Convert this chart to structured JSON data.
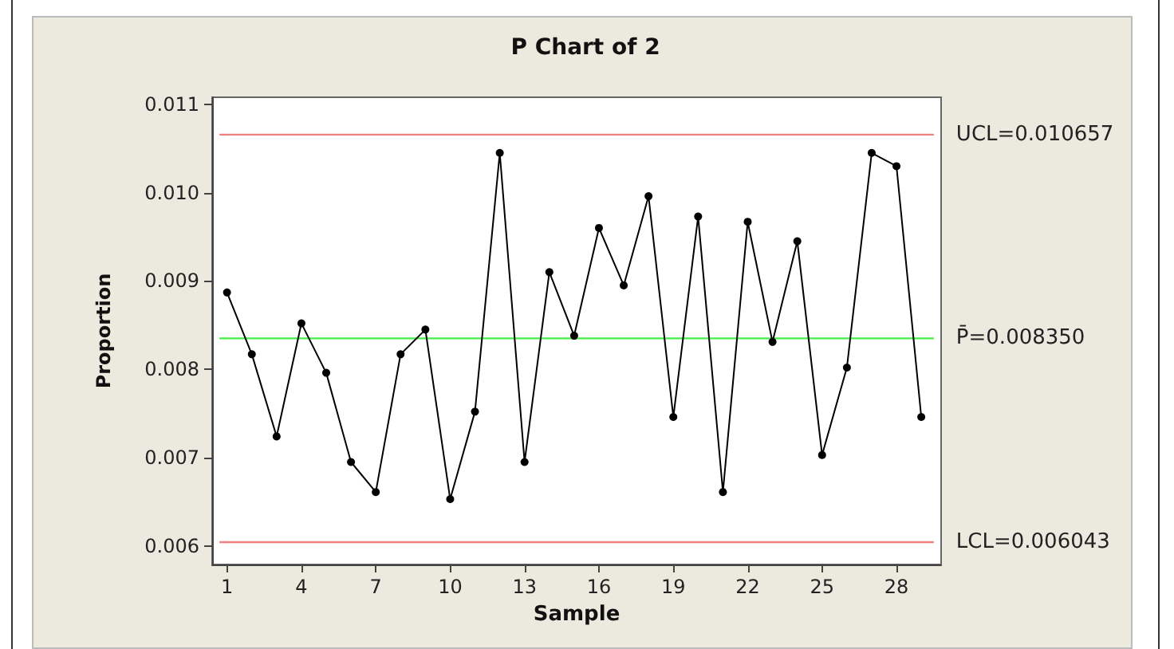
{
  "chart_data": {
    "type": "line",
    "title": "P Chart of 2",
    "xlabel": "Sample",
    "ylabel": "Proportion",
    "x": [
      1,
      2,
      3,
      4,
      5,
      6,
      7,
      8,
      9,
      10,
      11,
      12,
      13,
      14,
      15,
      16,
      17,
      18,
      19,
      20,
      21,
      22,
      23,
      24,
      25,
      26,
      27,
      28,
      29
    ],
    "series": [
      {
        "color": "#000000",
        "values": [
          0.00887,
          0.00817,
          0.00724,
          0.00852,
          0.00796,
          0.00695,
          0.00661,
          0.00817,
          0.00845,
          0.00653,
          0.00752,
          0.01045,
          0.00695,
          0.0091,
          0.00838,
          0.0096,
          0.00895,
          0.00996,
          0.00746,
          0.00973,
          0.00661,
          0.00967,
          0.00831,
          0.00945,
          0.00703,
          0.00802,
          0.01045,
          0.0103,
          0.00746
        ]
      }
    ],
    "xlim": [
      0.4,
      29.8
    ],
    "xticks": [
      1,
      4,
      7,
      10,
      13,
      16,
      19,
      22,
      25,
      28
    ],
    "ylim": [
      0.00579,
      0.01108
    ],
    "yticks": [
      0.006,
      0.007,
      0.008,
      0.009,
      {
        "value": 0.01,
        "label": "0.010"
      },
      0.011
    ],
    "ref_lines": [
      {
        "axis": "y",
        "value": 0.010657,
        "label": "UCL=0.010657",
        "color": "#f08080"
      },
      {
        "axis": "y",
        "value": 0.00835,
        "label": "P̄=0.008350",
        "color": "#44ee44"
      },
      {
        "axis": "y",
        "value": 0.006043,
        "label": "LCL=0.006043",
        "color": "#f08080"
      }
    ],
    "grid": false,
    "marker": "circle",
    "line_style": "solid"
  }
}
